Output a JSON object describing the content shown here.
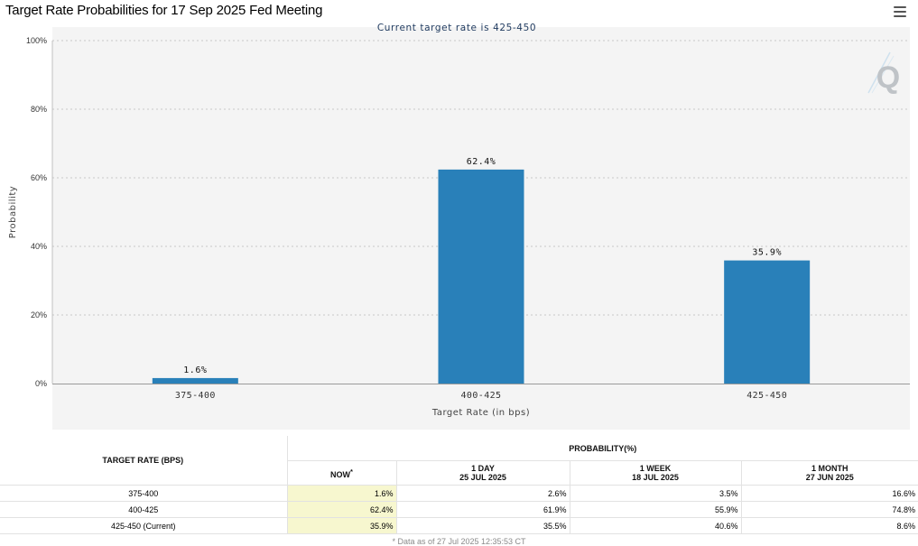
{
  "title": "Target Rate Probabilities for 17 Sep 2025 Fed Meeting",
  "menu_icon": "hamburger-menu-icon",
  "watermark_icon": "q-logo-icon",
  "colors": {
    "bar": "#2980b9",
    "grid": "#c8c8c8",
    "subtitle": "#1f3a5f",
    "now_col_bg": "#f7f7cf"
  },
  "chart_data": {
    "type": "bar",
    "title": "Target Rate Probabilities for 17 Sep 2025 Fed Meeting",
    "subtitle": "Current target rate is 425-450",
    "categories": [
      "375-400",
      "400-425",
      "425-450"
    ],
    "values": [
      1.6,
      62.4,
      35.9
    ],
    "data_labels": [
      "1.6%",
      "62.4%",
      "35.9%"
    ],
    "xlabel": "Target Rate (in bps)",
    "ylabel": "Probability",
    "ylim": [
      0,
      100
    ],
    "yticks": [
      0,
      20,
      40,
      60,
      80,
      100
    ],
    "ytick_labels": [
      "0%",
      "20%",
      "40%",
      "60%",
      "80%",
      "100%"
    ],
    "grid": true
  },
  "table": {
    "rate_header": "TARGET RATE (BPS)",
    "prob_header": "PROBABILITY(%)",
    "col_now": "NOW",
    "col_now_mark": "*",
    "col_1day": "1 DAY",
    "col_1day_date": "25 JUL 2025",
    "col_1week": "1 WEEK",
    "col_1week_date": "18 JUL 2025",
    "col_1month": "1 MONTH",
    "col_1month_date": "27 JUN 2025",
    "rows": [
      {
        "rate": "375-400",
        "now": "1.6%",
        "day": "2.6%",
        "week": "3.5%",
        "month": "16.6%"
      },
      {
        "rate": "400-425",
        "now": "62.4%",
        "day": "61.9%",
        "week": "55.9%",
        "month": "74.8%"
      },
      {
        "rate": "425-450 (Current)",
        "now": "35.9%",
        "day": "35.5%",
        "week": "40.6%",
        "month": "8.6%"
      }
    ],
    "footnote": "* Data as of 27 Jul 2025 12:35:53 CT"
  }
}
